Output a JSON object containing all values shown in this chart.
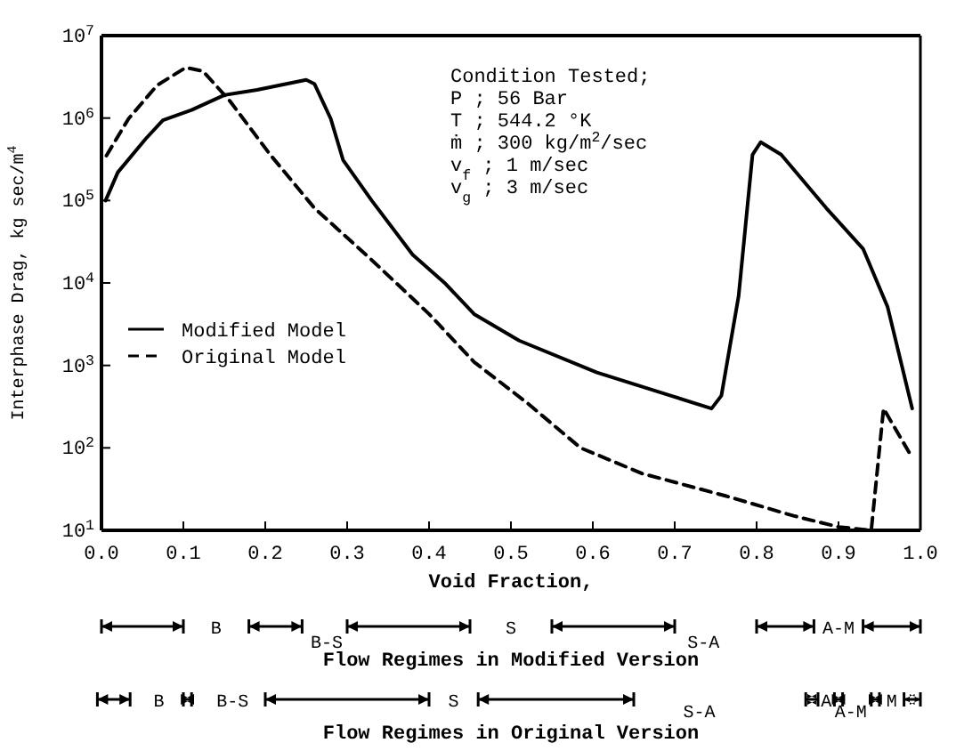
{
  "chart_data": {
    "type": "line",
    "xlabel": "Void Fraction,",
    "ylabel": "Interphase Drag, kg sec/m$^{4}$",
    "log": "y",
    "legend": "left",
    "grid": false,
    "xlim": [
      0,
      1
    ],
    "xticks": [
      {
        "value": 0,
        "label": "0.0"
      },
      0.1,
      0.2,
      0.3,
      0.4,
      0.5,
      0.6,
      0.7,
      0.8,
      0.9,
      {
        "value": 1,
        "label": "1.0"
      }
    ],
    "ylim": [
      10,
      10000000
    ],
    "yticks": [
      {
        "value": 10,
        "label": "10$^{1}$"
      },
      {
        "value": 100,
        "label": "10$^{2}$"
      },
      {
        "value": 1000,
        "label": "10$^{3}$"
      },
      {
        "value": 10000,
        "label": "10$^{4}$"
      },
      {
        "value": 100000,
        "label": "10$^{5}$"
      },
      {
        "value": 1000000,
        "label": "10$^{6}$"
      },
      {
        "value": 10000000,
        "label": "10$^{7}$"
      }
    ],
    "series": [
      {
        "name": "Modified Model",
        "color": "#000000",
        "line_style": "solid",
        "x": [
          0.005,
          0.02,
          0.054,
          0.075,
          0.11,
          0.15,
          0.19,
          0.25,
          0.26,
          0.28,
          0.295,
          0.33,
          0.38,
          0.42,
          0.455,
          0.51,
          0.605,
          0.695,
          0.745,
          0.757,
          0.778,
          0.795,
          0.805,
          0.83,
          0.885,
          0.93,
          0.96,
          0.99
        ],
        "values": [
          100000,
          220000,
          560000,
          940000,
          1250000,
          1900000,
          2200000,
          2900000,
          2600000,
          980000,
          310000,
          100000,
          22000,
          9800,
          4200,
          2000,
          820,
          430,
          300,
          430,
          6900,
          360000,
          510000,
          360000,
          81000,
          26000,
          5100,
          300
        ]
      },
      {
        "name": "Original Model",
        "color": "#000000",
        "line_style": "dashed",
        "x": [
          0.006,
          0.033,
          0.068,
          0.103,
          0.124,
          0.157,
          0.206,
          0.26,
          0.33,
          0.4,
          0.455,
          0.52,
          0.585,
          0.66,
          0.763,
          0.845,
          0.9,
          0.94,
          0.955,
          0.99
        ],
        "values": [
          350000,
          980000,
          2500000,
          4100000,
          3700000,
          1600000,
          360000,
          81000,
          19000,
          4200,
          1100,
          350,
          100,
          49,
          26,
          15,
          11,
          10,
          300,
          76
        ]
      }
    ],
    "annotations": [
      "Condition Tested;",
      "P ; 56 Bar",
      "T ; 544.2 °K",
      "ṁ ; 300 kg/m$^{2}$/sec",
      "v$_{f}$ ; 1 m/sec",
      "v$_{g}$ ; 3 m/sec",
      "B",
      "B-S",
      "S",
      "S-A",
      "A-M",
      "Flow Regimes in Modified Version",
      "B",
      "B-S",
      "S",
      "S-A",
      "A",
      "A-M",
      "M",
      "Flow Regimes in Original Version"
    ]
  }
}
